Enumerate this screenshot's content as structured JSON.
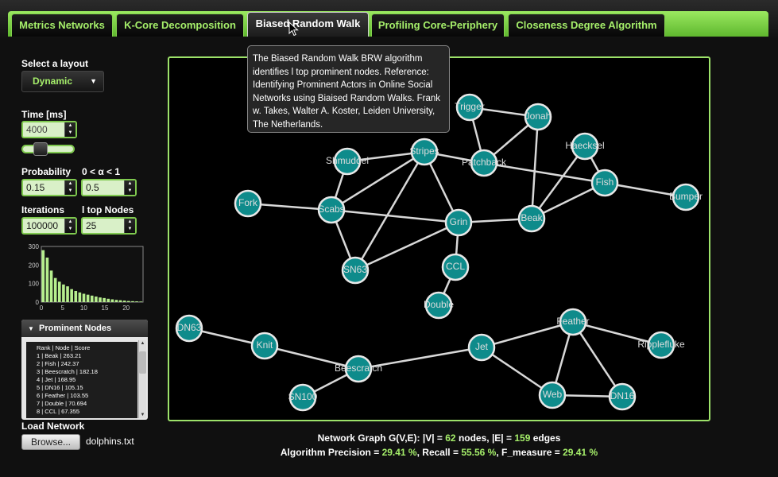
{
  "tabs": [
    {
      "label": "Metrics Networks",
      "active": false
    },
    {
      "label": "K-Core Decomposition",
      "active": false
    },
    {
      "label": "Biased Random Walk",
      "active": true
    },
    {
      "label": "Profiling Core-Periphery",
      "active": false
    },
    {
      "label": "Closeness Degree Algorithm",
      "active": false
    }
  ],
  "left": {
    "layout_label": "Select a layout",
    "layout_value": "Dynamic",
    "time_label": "Time [ms]",
    "time_value": "4000",
    "time_slider_fraction": 0.35,
    "probability_label": "Probability",
    "alpha_label": "0 < α < 1",
    "probability_value": "0.15",
    "alpha_value": "0.5",
    "iterations_label": "Iterations",
    "ltop_label": "l top Nodes",
    "iterations_value": "100000",
    "ltop_value": "25",
    "prominent_title": "Prominent Nodes",
    "prominent_header": "Rank | Node | Score",
    "prominent_rows": [
      "1 | Beak | 263.21",
      "2 | Fish | 242.37",
      "3 | Beescratch | 182.18",
      "4 | Jet | 168.95",
      "5 | DN16 | 105.15",
      "6 | Feather | 103.55",
      "7 | Double | 70.694",
      "8 | CCL | 67.355"
    ],
    "load_label": "Load Network",
    "browse_label": "Browse...",
    "filename": "dolphins.txt"
  },
  "tooltip": "The Biased Random Walk BRW algorithm identifies l top prominent nodes. Reference: Identifying Prominent Actors in Online Social Networks using Biaised Random Walks. Frank w. Takes, Walter A. Koster, Leiden University, The Netherlands.",
  "stats": {
    "graph_prefix": "Network Graph G(V,E): |V| = ",
    "v": "62",
    "mid": " nodes, |E| = ",
    "e": "159",
    "graph_suffix": " edges",
    "precision_prefix": "Algorithm Precision = ",
    "precision": "29.41 %",
    "recall_prefix": ", Recall = ",
    "recall": "55.56 %",
    "f_prefix": ", F_measure = ",
    "f": "29.41 %"
  },
  "graph": {
    "node_color": "#0e8b8b",
    "nodes": [
      "Trigger",
      "Jonah",
      "Haecksel",
      "Shmuddel",
      "Stripes",
      "Patchback",
      "Fish",
      "Bumper",
      "Fork",
      "Scabs",
      "Grin",
      "Beak",
      "SN63",
      "CCL",
      "Double",
      "DN63",
      "Knit",
      "Beescratch",
      "SN100",
      "Jet",
      "Feather",
      "Ripplefluke",
      "Web",
      "DN16"
    ],
    "edges": [
      [
        "Trigger",
        "Jonah"
      ],
      [
        "Trigger",
        "Patchback"
      ],
      [
        "Jonah",
        "Patchback"
      ],
      [
        "Haecksel",
        "Fish"
      ],
      [
        "Haecksel",
        "Beak"
      ],
      [
        "Stripes",
        "Patchback"
      ],
      [
        "Patchback",
        "Fish"
      ],
      [
        "Fish",
        "Bumper"
      ],
      [
        "Fish",
        "Beak"
      ],
      [
        "Shmuddel",
        "Scabs"
      ],
      [
        "Shmuddel",
        "Stripes"
      ],
      [
        "Stripes",
        "Scabs"
      ],
      [
        "Stripes",
        "Grin"
      ],
      [
        "Stripes",
        "SN63"
      ],
      [
        "Fork",
        "Scabs"
      ],
      [
        "Scabs",
        "Grin"
      ],
      [
        "Scabs",
        "SN63"
      ],
      [
        "Grin",
        "Beak"
      ],
      [
        "Grin",
        "SN63"
      ],
      [
        "Grin",
        "CCL"
      ],
      [
        "CCL",
        "Double"
      ],
      [
        "Beak",
        "Jonah"
      ],
      [
        "DN63",
        "Knit"
      ],
      [
        "Knit",
        "Beescratch"
      ],
      [
        "Beescratch",
        "SN100"
      ],
      [
        "Beescratch",
        "Jet"
      ],
      [
        "Jet",
        "Feather"
      ],
      [
        "Jet",
        "Web"
      ],
      [
        "Feather",
        "Ripplefluke"
      ],
      [
        "Feather",
        "Web"
      ],
      [
        "Feather",
        "DN16"
      ],
      [
        "Web",
        "DN16"
      ]
    ]
  },
  "histogram": {
    "y_ticks": [
      "300",
      "200",
      "100",
      "0"
    ],
    "x_ticks": [
      "0",
      "5",
      "10",
      "15",
      "20"
    ],
    "values": [
      280,
      240,
      170,
      130,
      110,
      95,
      85,
      70,
      60,
      52,
      45,
      40,
      35,
      30,
      25,
      22,
      18,
      15,
      12,
      10,
      8,
      6,
      5,
      4,
      3
    ]
  }
}
